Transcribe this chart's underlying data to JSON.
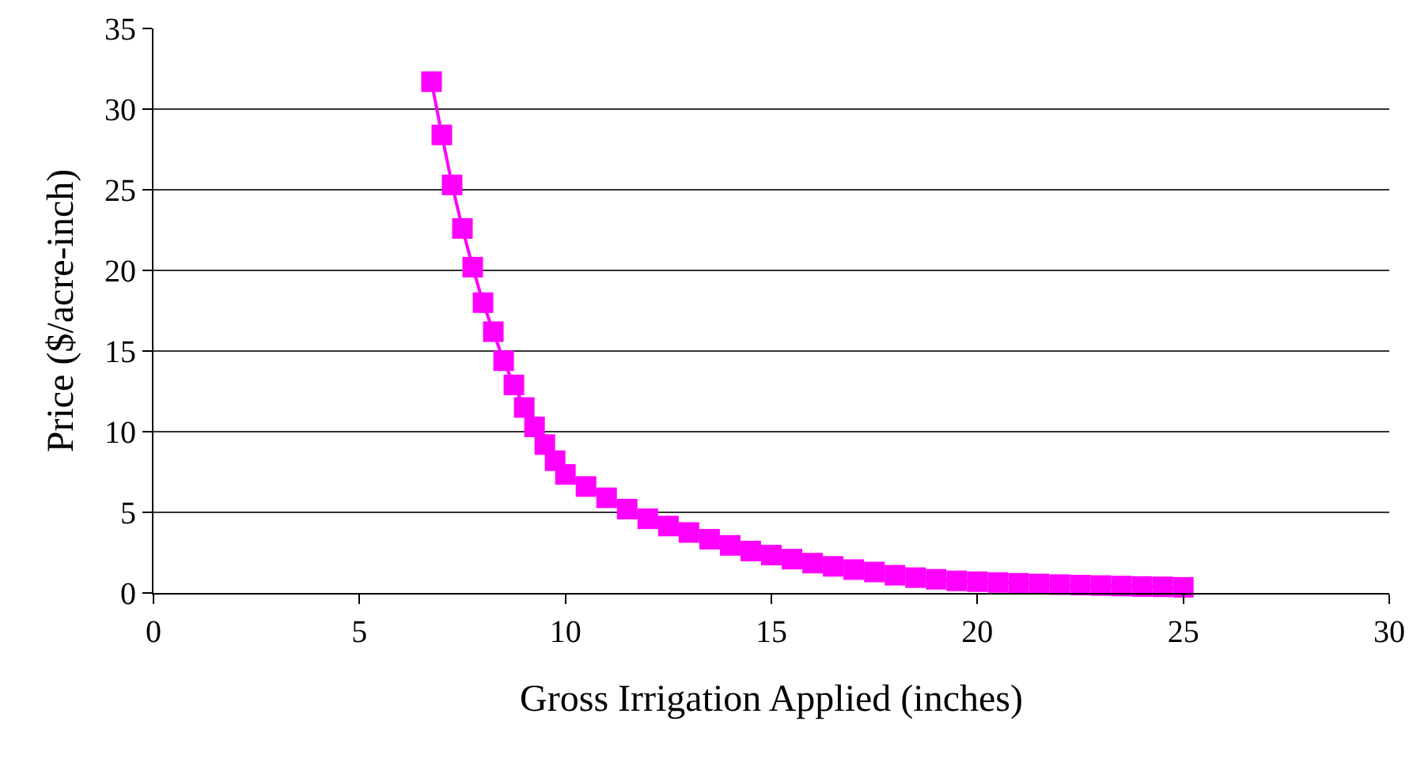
{
  "chart_data": {
    "type": "line",
    "xlabel": "Gross Irrigation Applied (inches)",
    "ylabel": "Price ($/acre-inch)",
    "x": [
      6.75,
      7,
      7.25,
      7.5,
      7.75,
      8,
      8.25,
      8.5,
      8.75,
      9,
      9.25,
      9.5,
      9.75,
      10,
      10.5,
      11,
      11.5,
      12,
      12.5,
      13,
      13.5,
      14,
      14.5,
      15,
      15.5,
      16,
      16.5,
      17,
      17.5,
      18,
      18.5,
      19,
      19.5,
      20,
      20.5,
      21,
      21.5,
      22,
      22.5,
      23,
      23.5,
      24,
      24.5,
      25
    ],
    "series": [
      {
        "color": "#ff00ff",
        "values": [
          31.7,
          28.4,
          25.3,
          22.6,
          20.2,
          18.0,
          16.2,
          14.4,
          12.9,
          11.5,
          10.3,
          9.2,
          8.2,
          7.35,
          6.6,
          5.9,
          5.2,
          4.6,
          4.15,
          3.75,
          3.33,
          2.95,
          2.6,
          2.35,
          2.1,
          1.85,
          1.65,
          1.45,
          1.3,
          1.1,
          0.95,
          0.85,
          0.75,
          0.7,
          0.65,
          0.6,
          0.56,
          0.52,
          0.49,
          0.46,
          0.43,
          0.4,
          0.38,
          0.35
        ]
      }
    ],
    "xlim": [
      0,
      30
    ],
    "xticks": [
      0,
      5,
      10,
      15,
      20,
      25,
      30
    ],
    "ylim": [
      0,
      35
    ],
    "yticks": [
      0,
      5,
      10,
      15,
      20,
      25,
      30,
      35
    ],
    "grid": "y",
    "legend": false,
    "marker": "square",
    "line_style": "solid"
  }
}
